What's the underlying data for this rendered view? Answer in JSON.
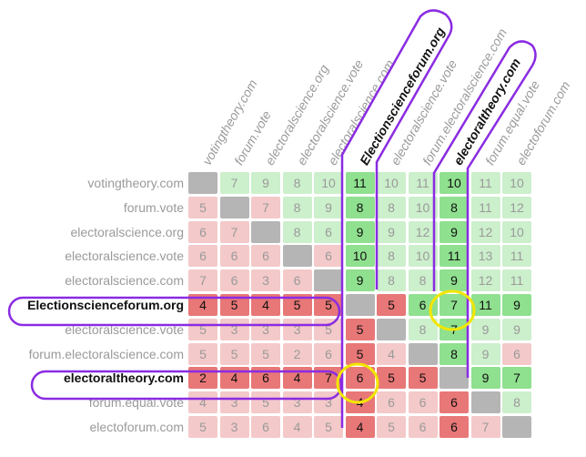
{
  "labels": [
    "votingtheory.com",
    "forum.vote",
    "electoralscience.org",
    "electoralscience.vote",
    "electoralscience.com",
    "Electionscienceforum.org",
    "electoralscience.vote",
    "forum.electoralscience.com",
    "electoraltheory.com",
    "forum.equal.vote",
    "electoforum.com"
  ],
  "highlighted": [
    5,
    8
  ],
  "matrix": [
    [
      null,
      7,
      9,
      8,
      10,
      11,
      10,
      11,
      10,
      11,
      10
    ],
    [
      5,
      null,
      7,
      8,
      9,
      8,
      8,
      10,
      8,
      11,
      12
    ],
    [
      6,
      7,
      null,
      8,
      6,
      9,
      9,
      12,
      9,
      12,
      10
    ],
    [
      6,
      6,
      6,
      null,
      6,
      10,
      8,
      10,
      11,
      13,
      11
    ],
    [
      7,
      6,
      3,
      6,
      null,
      9,
      8,
      8,
      9,
      12,
      11
    ],
    [
      4,
      5,
      4,
      5,
      5,
      null,
      5,
      6,
      7,
      11,
      9
    ],
    [
      5,
      3,
      3,
      3,
      5,
      5,
      null,
      8,
      7,
      9,
      9
    ],
    [
      5,
      5,
      5,
      2,
      6,
      5,
      4,
      null,
      8,
      9,
      6
    ],
    [
      2,
      4,
      6,
      4,
      7,
      6,
      5,
      5,
      null,
      9,
      7
    ],
    [
      4,
      3,
      5,
      3,
      3,
      4,
      6,
      6,
      6,
      null,
      8
    ],
    [
      5,
      3,
      6,
      4,
      5,
      4,
      5,
      6,
      6,
      7,
      null
    ]
  ],
  "colors": {
    "diagonal": "#b5b5b5",
    "outline_purple": "#8a2be2",
    "outline_yellow": "#f2e600",
    "green_strong": "#6fd36f",
    "red_strong": "#e65c5c"
  }
}
